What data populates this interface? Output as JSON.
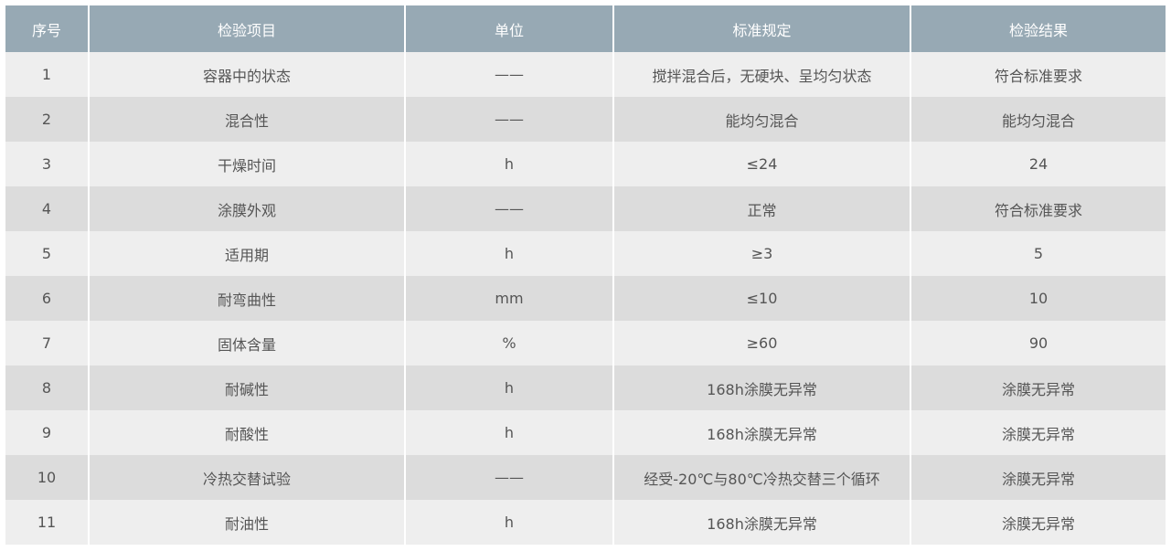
{
  "table": {
    "headers": [
      "序号",
      "检验项目",
      "单位",
      "标准规定",
      "检验结果"
    ],
    "rows": [
      [
        "1",
        "容器中的状态",
        "——",
        "搅拌混合后，无硬块、呈均匀状态",
        "符合标准要求"
      ],
      [
        "2",
        "混合性",
        "——",
        "能均匀混合",
        "能均匀混合"
      ],
      [
        "3",
        "干燥时间",
        "h",
        "≤24",
        "24"
      ],
      [
        "4",
        "涂膜外观",
        "——",
        "正常",
        "符合标准要求"
      ],
      [
        "5",
        "适用期",
        "h",
        "≥3",
        "5"
      ],
      [
        "6",
        "耐弯曲性",
        "mm",
        "≤10",
        "10"
      ],
      [
        "7",
        "固体含量",
        "%",
        "≥60",
        "90"
      ],
      [
        "8",
        "耐碱性",
        "h",
        "168h涂膜无异常",
        "涂膜无异常"
      ],
      [
        "9",
        "耐酸性",
        "h",
        "168h涂膜无异常",
        "涂膜无异常"
      ],
      [
        "10",
        "冷热交替试验",
        "——",
        "经受-20℃与80℃冷热交替三个循环",
        "涂膜无异常"
      ],
      [
        "11",
        "耐油性",
        "h",
        "168h涂膜无异常",
        "涂膜无异常"
      ]
    ]
  },
  "colors": {
    "header_bg": "#97a9b4",
    "row_light": "#eeeeee",
    "row_dark": "#dcdcdc",
    "text": "#555555"
  }
}
